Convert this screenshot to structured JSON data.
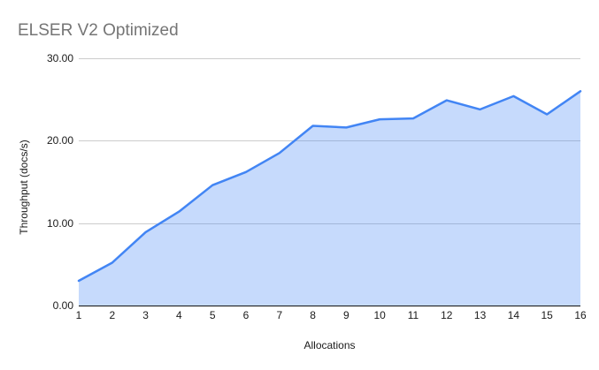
{
  "chart_data": {
    "type": "area",
    "title": "ELSER V2 Optimized",
    "xlabel": "Allocations",
    "ylabel": "Throughput (docs/s)",
    "x": [
      1,
      2,
      3,
      4,
      5,
      6,
      7,
      8,
      9,
      10,
      11,
      12,
      13,
      14,
      15,
      16
    ],
    "values": [
      3.0,
      5.2,
      8.9,
      11.4,
      14.6,
      16.2,
      18.5,
      21.8,
      21.6,
      22.6,
      22.7,
      24.9,
      23.8,
      25.4,
      23.2,
      26.0
    ],
    "ylim": [
      0,
      30
    ],
    "ytick_values": [
      0,
      10,
      20,
      30
    ],
    "ytick_labels": [
      "0.00",
      "10.00",
      "20.00",
      "30.00"
    ],
    "xtick_labels": [
      "1",
      "2",
      "3",
      "4",
      "5",
      "6",
      "7",
      "8",
      "9",
      "10",
      "11",
      "12",
      "13",
      "14",
      "15",
      "16"
    ],
    "grid": true,
    "legend": "none"
  },
  "colors": {
    "line": "#4285f4",
    "area_fill": "rgba(66,133,244,0.30)",
    "title_text": "#757575",
    "axis_text": "#1a1a1a",
    "gridline": "#cccccc",
    "axis_line": "#111111",
    "background": "#ffffff"
  }
}
